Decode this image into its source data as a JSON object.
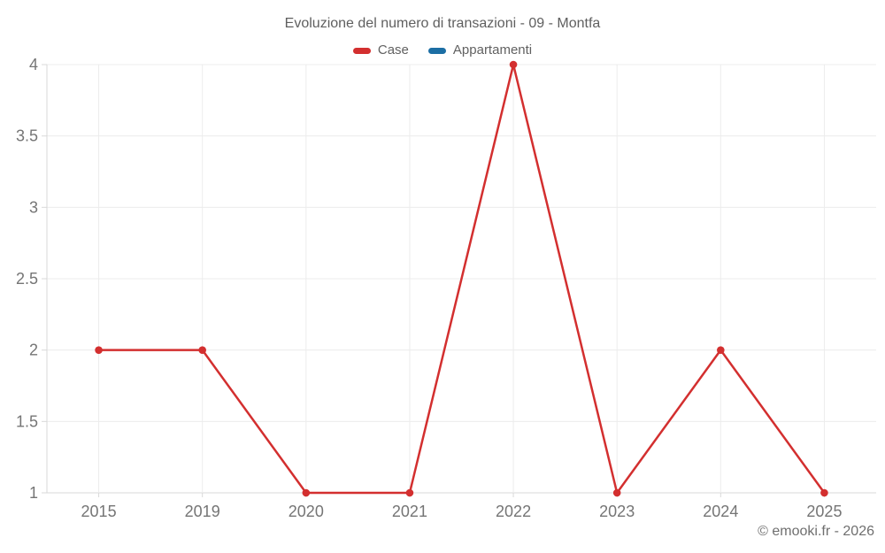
{
  "chart_data": {
    "type": "line",
    "title": "Evoluzione del numero di transazioni - 09 - Montfa",
    "categories": [
      "2015",
      "2019",
      "2020",
      "2021",
      "2022",
      "2023",
      "2024",
      "2025"
    ],
    "series": [
      {
        "name": "Case",
        "color": "#d32f2f",
        "values": [
          2,
          2,
          1,
          1,
          4,
          1,
          2,
          1
        ]
      },
      {
        "name": "Appartamenti",
        "color": "#1c6ea4",
        "values": []
      }
    ],
    "xlabel": "",
    "ylabel": "",
    "ylim": [
      1,
      4
    ],
    "yticks": [
      1,
      1.5,
      2,
      2.5,
      3,
      3.5,
      4
    ],
    "grid": true,
    "legend_position": "top"
  },
  "footer": {
    "copyright": "© emooki.fr - 2026"
  }
}
